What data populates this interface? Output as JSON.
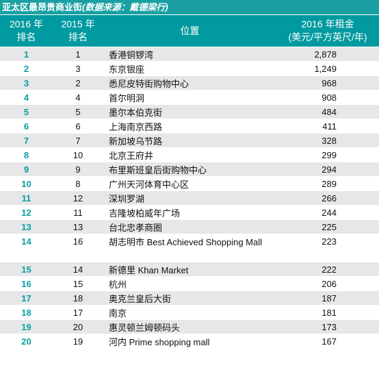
{
  "title": {
    "main": "亚太区最昂贵商业街",
    "source": "(数据来源：戴德梁行)"
  },
  "headers": {
    "rank2016_line1": "2016 年",
    "rank2016_line2": "排名",
    "rank2015_line1": "2015 年",
    "rank2015_line2": "排名",
    "location": "位置",
    "rent_line1": "2016 年租金",
    "rent_line2": "(美元/平方英尺/年)"
  },
  "rows": [
    {
      "rank2016": "1",
      "rank2015": "1",
      "location": "香港铜锣湾",
      "rent": "2,878"
    },
    {
      "rank2016": "2",
      "rank2015": "3",
      "location": "东京银座",
      "rent": "1,249"
    },
    {
      "rank2016": "3",
      "rank2015": "2",
      "location": "悉尼皮特街购物中心",
      "rent": "968"
    },
    {
      "rank2016": "4",
      "rank2015": "4",
      "location": "首尔明洞",
      "rent": "908"
    },
    {
      "rank2016": "5",
      "rank2015": "5",
      "location": "墨尔本伯克街",
      "rent": "484"
    },
    {
      "rank2016": "6",
      "rank2015": "6",
      "location": "上海南京西路",
      "rent": "411"
    },
    {
      "rank2016": "7",
      "rank2015": "7",
      "location": "新加坡乌节路",
      "rent": "328"
    },
    {
      "rank2016": "8",
      "rank2015": "10",
      "location": "北京王府井",
      "rent": "299"
    },
    {
      "rank2016": "9",
      "rank2015": "9",
      "location": "布里斯班皇后街购物中心",
      "rent": "294"
    },
    {
      "rank2016": "10",
      "rank2015": "8",
      "location": "广州天河体育中心区",
      "rent": "289"
    },
    {
      "rank2016": "11",
      "rank2015": "12",
      "location": "深圳罗湖",
      "rent": "266"
    },
    {
      "rank2016": "12",
      "rank2015": "11",
      "location": "吉隆坡柏威年广场",
      "rent": "244"
    },
    {
      "rank2016": "13",
      "rank2015": "13",
      "location": "台北忠孝商圈",
      "rent": "225"
    },
    {
      "rank2016": "14",
      "rank2015": "16",
      "location": "胡志明市 Best Achieved Shopping Mall",
      "rent": "223"
    },
    {
      "rank2016": "15",
      "rank2015": "14",
      "location": "新德里 Khan Market",
      "rent": "222"
    },
    {
      "rank2016": "16",
      "rank2015": "15",
      "location": "杭州",
      "rent": "206"
    },
    {
      "rank2016": "17",
      "rank2015": "18",
      "location": "奥克兰皇后大街",
      "rent": "187"
    },
    {
      "rank2016": "18",
      "rank2015": "17",
      "location": "南京",
      "rent": "181"
    },
    {
      "rank2016": "19",
      "rank2015": "20",
      "location": "惠灵顿兰姆顿码头",
      "rent": "173"
    },
    {
      "rank2016": "20",
      "rank2015": "19",
      "location": "河内 Prime shopping mall",
      "rent": "167"
    }
  ]
}
